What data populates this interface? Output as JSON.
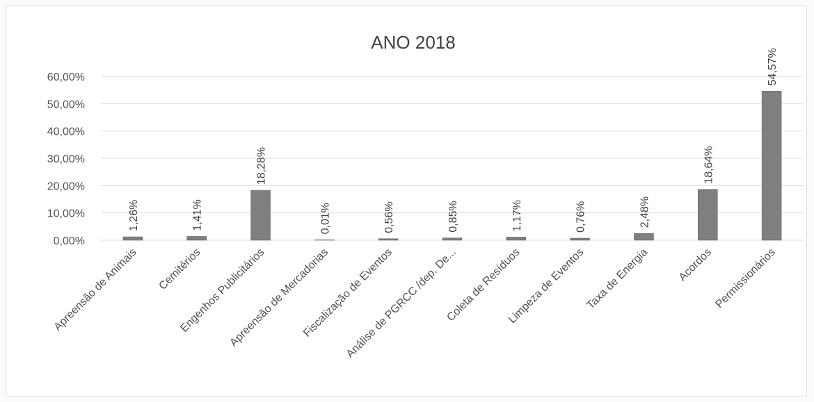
{
  "chart_data": {
    "type": "bar",
    "title": "ANO 2018",
    "xlabel": "",
    "ylabel": "",
    "ylim": [
      0,
      0.6
    ],
    "yticks": [
      "0,00%",
      "10,00%",
      "20,00%",
      "30,00%",
      "40,00%",
      "50,00%",
      "60,00%"
    ],
    "grid": true,
    "legend": "none",
    "categories": [
      "Apreensão de Animais",
      "Cemitérios",
      "Engenhos Publicitários",
      "Apreensão de Mercadorias",
      "Fiscalização de Eventos",
      "Análise de PGRCC /dep. De...",
      "Coleta de Resíduos",
      "Limpeza de Eventos",
      "Taxa de Energia",
      "Acordos",
      "Permissionários"
    ],
    "values": [
      0.0126,
      0.0141,
      0.1828,
      0.0001,
      0.0056,
      0.0085,
      0.0117,
      0.0076,
      0.0248,
      0.1864,
      0.5457
    ],
    "data_labels": [
      "1,26%",
      "1,41%",
      "18,28%",
      "0,01%",
      "0,56%",
      "0,85%",
      "1,17%",
      "0,76%",
      "2,48%",
      "18,64%",
      "54,57%"
    ],
    "colors": {
      "bar": "#7f7f7f",
      "bar_edge": "#5f5f5f",
      "grid": "#d9d9d9",
      "text": "#404040"
    }
  }
}
